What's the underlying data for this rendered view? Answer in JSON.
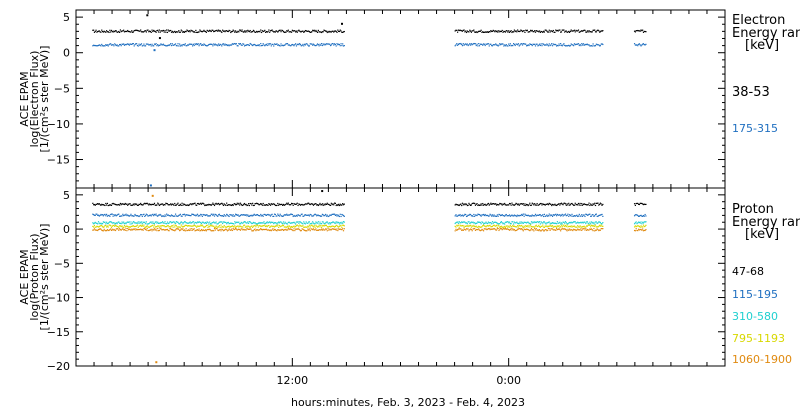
{
  "chart_data": [
    {
      "type": "scatter",
      "panel": "electron",
      "ylabel": [
        "ACE EPAM",
        "log(Electron Flux)",
        "[1/(cm²s ster MeV)]"
      ],
      "ylim": [
        -19,
        6
      ],
      "yticks": [
        5,
        0,
        -5,
        -10,
        -15
      ],
      "legend_title": [
        "Electron",
        "Energy ran",
        "[keV]"
      ],
      "series": [
        {
          "name": "38-53",
          "color": "#000000",
          "level": 3.1,
          "segments": [
            [
              0.9,
              14.85
            ],
            [
              21.0,
              29.2
            ],
            [
              30.95,
              31.6
            ]
          ]
        },
        {
          "name": "175-315",
          "color": "#1f6fc0",
          "level": 1.2,
          "segments": [
            [
              0.9,
              14.85
            ],
            [
              21.0,
              29.2
            ],
            [
              30.95,
              31.6
            ]
          ]
        }
      ],
      "outliers": [
        {
          "x": 3.9,
          "y": 5.4,
          "series": 0
        },
        {
          "x": 4.6,
          "y": 2.2,
          "series": 0
        },
        {
          "x": 4.3,
          "y": 0.5,
          "series": 1
        },
        {
          "x": 4.1,
          "y": -18.5,
          "series": 1
        },
        {
          "x": 14.7,
          "y": 4.2,
          "series": 0
        }
      ]
    },
    {
      "type": "scatter",
      "panel": "proton",
      "ylabel": [
        "ACE EPAM",
        "log(Proton Flux)",
        "[1/(cm²s ster MeV)]"
      ],
      "ylim": [
        -20,
        6
      ],
      "yticks": [
        5,
        0,
        -5,
        -10,
        -15,
        -20
      ],
      "legend_title": [
        "Proton",
        "Energy ran",
        "[keV]"
      ],
      "series": [
        {
          "name": "47-68",
          "color": "#000000",
          "level": 3.7,
          "segments": [
            [
              0.9,
              14.85
            ],
            [
              21.0,
              29.2
            ],
            [
              30.95,
              31.6
            ]
          ]
        },
        {
          "name": "115-195",
          "color": "#1f6fc0",
          "level": 2.1,
          "segments": [
            [
              0.9,
              14.85
            ],
            [
              21.0,
              29.2
            ],
            [
              30.95,
              31.6
            ]
          ]
        },
        {
          "name": "310-580",
          "color": "#20d0d0",
          "level": 1.0,
          "segments": [
            [
              0.9,
              14.85
            ],
            [
              21.0,
              29.2
            ],
            [
              30.95,
              31.6
            ]
          ]
        },
        {
          "name": "795-1193",
          "color": "#d8d800",
          "level": 0.5,
          "segments": [
            [
              0.9,
              14.85
            ],
            [
              21.0,
              29.2
            ],
            [
              30.95,
              31.6
            ]
          ]
        },
        {
          "name": "1060-1900",
          "color": "#e08a10",
          "level": 0.0,
          "segments": [
            [
              0.9,
              14.85
            ],
            [
              21.0,
              29.2
            ],
            [
              30.95,
              31.6
            ]
          ]
        }
      ],
      "outliers": [
        {
          "x": 4.2,
          "y": 5.0,
          "series": 4
        },
        {
          "x": 4.4,
          "y": -19.3,
          "series": 4
        },
        {
          "x": 13.6,
          "y": 5.7,
          "series": 0
        }
      ]
    }
  ],
  "x_axis": {
    "label": "hours:minutes, Feb.  3, 2023 - Feb.  4, 2023",
    "range_hours": [
      0,
      36
    ],
    "labeled_ticks": [
      {
        "hours": 12,
        "label": "12:00"
      },
      {
        "hours": 24,
        "label": "0:00"
      }
    ]
  }
}
